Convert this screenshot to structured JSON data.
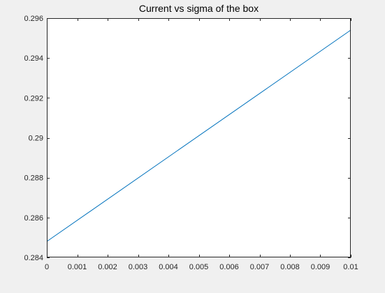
{
  "chart_data": {
    "type": "line",
    "title": "Current vs sigma of the box",
    "xlabel": "",
    "ylabel": "",
    "xlim": [
      0,
      0.01
    ],
    "ylim": [
      0.284,
      0.296
    ],
    "x_ticks": [
      0,
      0.001,
      0.002,
      0.003,
      0.004,
      0.005,
      0.006,
      0.007,
      0.008,
      0.009,
      0.01
    ],
    "x_tick_labels": [
      "0",
      "0.001",
      "0.002",
      "0.003",
      "0.004",
      "0.005",
      "0.006",
      "0.007",
      "0.008",
      "0.009",
      "0.01"
    ],
    "y_ticks": [
      0.284,
      0.286,
      0.288,
      0.29,
      0.292,
      0.294,
      0.296
    ],
    "y_tick_labels": [
      "0.284",
      "0.286",
      "0.288",
      "0.29",
      "0.292",
      "0.294",
      "0.296"
    ],
    "grid": false,
    "series": [
      {
        "color": "#0072bd",
        "x": [
          0,
          0.01
        ],
        "y": [
          0.2848,
          0.2954
        ]
      }
    ],
    "colors": {
      "figure_background": "#f0f0f0",
      "axes_background": "#ffffff",
      "axes_color": "#262626"
    }
  }
}
